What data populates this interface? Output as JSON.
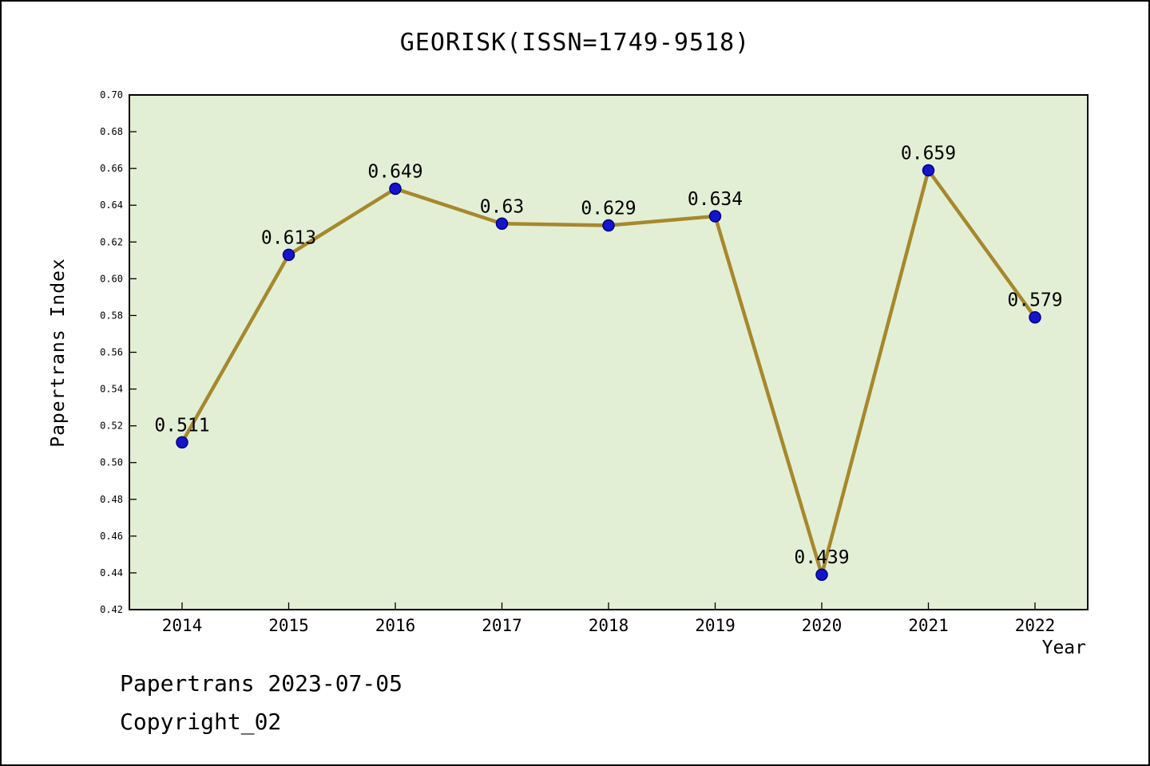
{
  "title": "GEORISK(ISSN=1749-9518)",
  "footer": {
    "line1": "Papertrans 2023-07-05",
    "line2": "Copyright_02"
  },
  "chart_data": {
    "type": "line",
    "x": [
      2014,
      2015,
      2016,
      2017,
      2018,
      2019,
      2020,
      2021,
      2022
    ],
    "series": [
      {
        "name": "Papertrans Index",
        "values": [
          0.511,
          0.613,
          0.649,
          0.63,
          0.629,
          0.634,
          0.439,
          0.659,
          0.579
        ]
      }
    ],
    "point_labels": [
      "0.511",
      "0.613",
      "0.649",
      "0.63",
      "0.629",
      "0.634",
      "0.439",
      "0.659",
      "0.579"
    ],
    "title": "GEORISK(ISSN=1749-9518)",
    "xlabel": "Year",
    "ylabel": "Papertrans Index",
    "ylim": [
      0.42,
      0.7
    ],
    "ytick_step": 0.02,
    "grid": false,
    "legend_position": "none",
    "colors": {
      "line": "#a6882d",
      "marker": "#1414cc",
      "marker_edge": "#000080",
      "plot_bg": "#e3efd5",
      "axis": "#000000"
    }
  }
}
